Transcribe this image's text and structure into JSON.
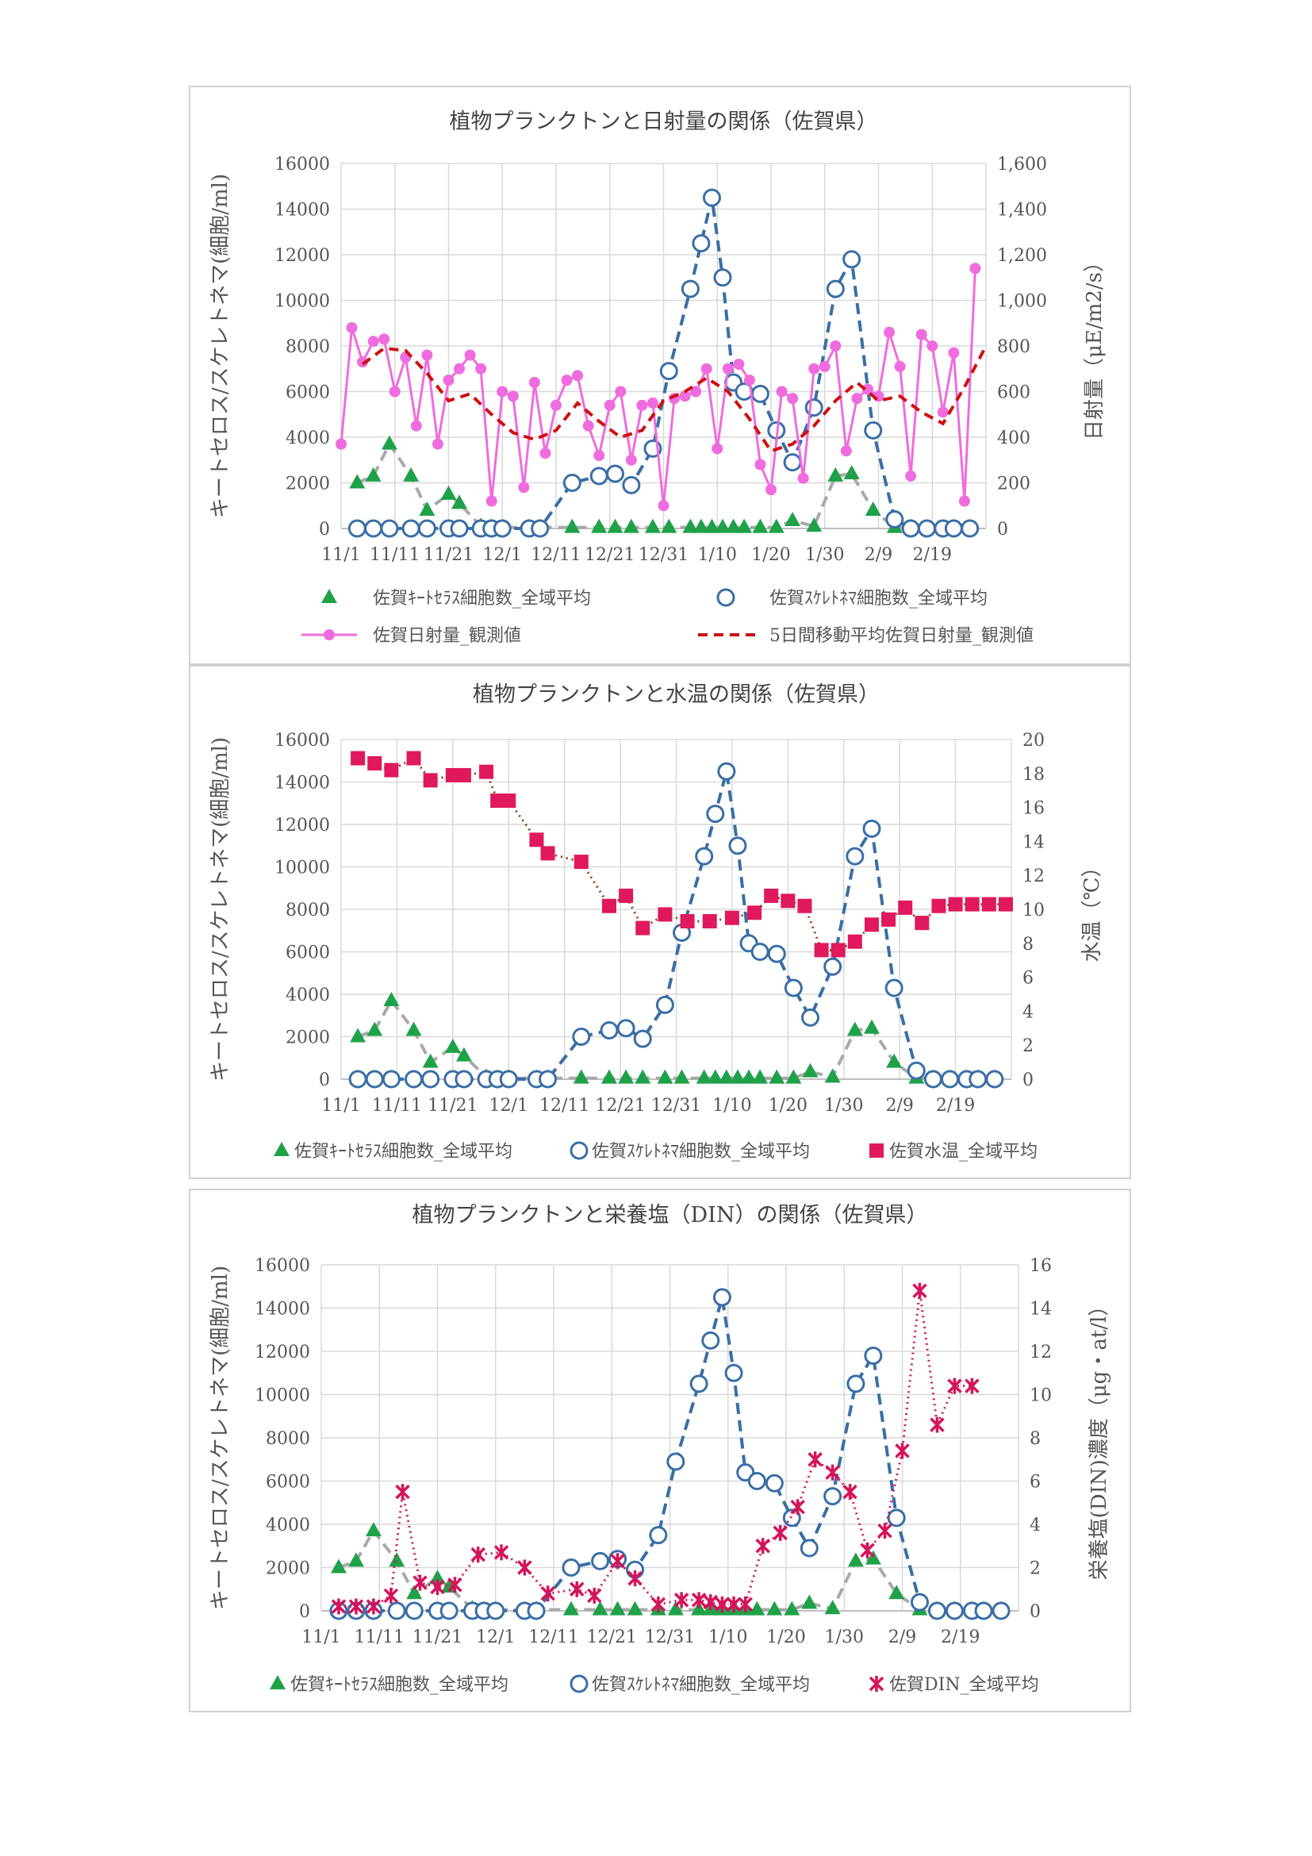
{
  "charts": [
    {
      "title": "植物プランクトンと日射量の関係（佐賀県）",
      "ylabel_left": "キートセロス/スケレトネマ(細胞/ml)",
      "ylabel_right": "日射量（μE/m2/s）",
      "left_ticks": [
        "16000",
        "14000",
        "12000",
        "10000",
        "8000",
        "6000",
        "4000",
        "2000",
        "0"
      ],
      "right_ticks": [
        "1,600",
        "1,400",
        "1,200",
        "1,000",
        "800",
        "600",
        "400",
        "200",
        "0"
      ],
      "x_ticks": [
        "11/1",
        "11/11",
        "11/21",
        "12/1",
        "12/11",
        "12/21",
        "12/31",
        "1/10",
        "1/20",
        "1/30",
        "2/9",
        "2/19"
      ],
      "legend": [
        {
          "label": "佐賀ｷｰﾄｾﾗｽ細胞数_全域平均",
          "key": "chaet"
        },
        {
          "label": "佐賀ｽｹﾚﾄﾈﾏ細胞数_全域平均",
          "key": "skel"
        },
        {
          "label": "佐賀日射量_観測値",
          "key": "solar"
        },
        {
          "label": "5日間移動平均佐賀日射量_観測値",
          "key": "solar_ma"
        }
      ]
    },
    {
      "title": "植物プランクトンと水温の関係（佐賀県）",
      "ylabel_left": "キートセロス/スケレトネマ(細胞/ml)",
      "ylabel_right": "水温（℃）",
      "left_ticks": [
        "16000",
        "14000",
        "12000",
        "10000",
        "8000",
        "6000",
        "4000",
        "2000",
        "0"
      ],
      "right_ticks": [
        "20",
        "18",
        "16",
        "14",
        "12",
        "10",
        "8",
        "6",
        "4",
        "2",
        "0"
      ],
      "x_ticks": [
        "11/1",
        "11/11",
        "11/21",
        "12/1",
        "12/11",
        "12/21",
        "12/31",
        "1/10",
        "1/20",
        "1/30",
        "2/9",
        "2/19"
      ],
      "legend": [
        {
          "label": "佐賀ｷｰﾄｾﾗｽ細胞数_全域平均",
          "key": "chaet"
        },
        {
          "label": "佐賀ｽｹﾚﾄﾈﾏ細胞数_全域平均",
          "key": "skel"
        },
        {
          "label": "佐賀水温_全域平均",
          "key": "temp"
        }
      ]
    },
    {
      "title": "植物プランクトンと栄養塩（DIN）の関係（佐賀県）",
      "ylabel_left": "キートセロス/スケレトネマ(細胞/ml)",
      "ylabel_right": "栄養塩(DIN)濃度（μg・at/l）",
      "left_ticks": [
        "16000",
        "14000",
        "12000",
        "10000",
        "8000",
        "6000",
        "4000",
        "2000",
        "0"
      ],
      "right_ticks": [
        "16",
        "14",
        "12",
        "10",
        "8",
        "6",
        "4",
        "2",
        "0"
      ],
      "x_ticks": [
        "11/1",
        "11/11",
        "11/21",
        "12/1",
        "12/11",
        "12/21",
        "12/31",
        "1/10",
        "1/20",
        "1/30",
        "2/9",
        "2/19"
      ],
      "legend": [
        {
          "label": "佐賀ｷｰﾄｾﾗｽ細胞数_全域平均",
          "key": "chaet"
        },
        {
          "label": "佐賀ｽｹﾚﾄﾈﾏ細胞数_全域平均",
          "key": "skel"
        },
        {
          "label": "佐賀DIN_全域平均",
          "key": "din"
        }
      ]
    }
  ],
  "colors": {
    "chaet": "#1fa14a",
    "chaet_line": "#a9a9a9",
    "skel": "#3a6ea5",
    "solar": "#ef6cde",
    "solar_ma": "#cc1111",
    "temp": "#e0185d",
    "temp_line": "#8b4513",
    "din": "#d4145a",
    "grid": "#d9d9d9",
    "axis_text": "#555555"
  },
  "chart_data": [
    {
      "type": "line",
      "title": "植物プランクトンと日射量の関係（佐賀県）",
      "x_unit": "day index from 11/1",
      "ylim_left": [
        0,
        16000
      ],
      "ylim_right": [
        0,
        1600
      ],
      "series": [
        {
          "name": "佐賀ｷｰﾄｾﾗｽ細胞数_全域平均",
          "axis": "left",
          "style": "triangle-dash",
          "x": [
            3,
            6,
            9,
            13,
            16,
            20,
            22,
            26,
            28,
            30,
            35,
            37,
            43,
            48,
            51,
            54,
            58,
            61,
            65,
            67,
            69,
            71,
            73,
            75,
            78,
            81,
            84,
            88,
            92,
            95,
            99,
            103,
            106
          ],
          "values": [
            2000,
            2300,
            3700,
            2300,
            800,
            1500,
            1100,
            100,
            50,
            50,
            50,
            50,
            50,
            50,
            50,
            50,
            50,
            50,
            50,
            50,
            50,
            50,
            50,
            50,
            50,
            50,
            350,
            100,
            2300,
            2400,
            800,
            50,
            50
          ]
        },
        {
          "name": "佐賀ｽｹﾚﾄﾈﾏ細胞数_全域平均",
          "axis": "left",
          "style": "circle-dash",
          "x": [
            3,
            6,
            9,
            13,
            16,
            20,
            22,
            26,
            28,
            30,
            35,
            37,
            43,
            48,
            51,
            54,
            58,
            61,
            65,
            67,
            69,
            71,
            73,
            75,
            78,
            81,
            84,
            88,
            92,
            95,
            99,
            103,
            106,
            109,
            112,
            114,
            117
          ],
          "values": [
            0,
            0,
            0,
            0,
            0,
            0,
            0,
            0,
            0,
            0,
            0,
            0,
            2000,
            2300,
            2400,
            1900,
            3500,
            6900,
            10500,
            12500,
            14500,
            11000,
            6400,
            6000,
            5900,
            4300,
            2900,
            5300,
            10500,
            11800,
            4300,
            400,
            0,
            0,
            0,
            0,
            0
          ]
        },
        {
          "name": "佐賀日射量_観測値",
          "axis": "right",
          "style": "magenta-dots",
          "x": [
            0,
            2,
            4,
            6,
            8,
            10,
            12,
            14,
            16,
            18,
            20,
            22,
            24,
            26,
            28,
            30,
            32,
            34,
            36,
            38,
            40,
            42,
            44,
            46,
            48,
            50,
            52,
            54,
            56,
            58,
            60,
            62,
            64,
            66,
            68,
            70,
            72,
            74,
            76,
            78,
            80,
            82,
            84,
            86,
            88,
            90,
            92,
            94,
            96,
            98,
            100,
            102,
            104,
            106,
            108,
            110,
            112,
            114,
            116,
            118
          ],
          "values": [
            370,
            880,
            730,
            820,
            830,
            600,
            750,
            450,
            760,
            370,
            650,
            700,
            760,
            700,
            120,
            600,
            580,
            180,
            640,
            330,
            540,
            650,
            670,
            450,
            320,
            540,
            600,
            300,
            540,
            550,
            100,
            570,
            580,
            600,
            700,
            350,
            700,
            720,
            650,
            280,
            170,
            600,
            570,
            220,
            700,
            710,
            800,
            340,
            570,
            610,
            580,
            860,
            710,
            230,
            850,
            800,
            510,
            770,
            120,
            1140
          ]
        },
        {
          "name": "5日間移動平均佐賀日射量_観測値",
          "axis": "right",
          "style": "red-dash",
          "x": [
            4,
            8,
            12,
            16,
            20,
            24,
            28,
            32,
            36,
            40,
            44,
            48,
            52,
            56,
            60,
            64,
            68,
            72,
            76,
            80,
            84,
            88,
            92,
            96,
            100,
            104,
            108,
            112,
            116,
            120
          ],
          "values": [
            720,
            790,
            780,
            680,
            560,
            590,
            500,
            420,
            390,
            430,
            550,
            470,
            400,
            430,
            560,
            600,
            660,
            600,
            480,
            340,
            370,
            450,
            560,
            640,
            560,
            580,
            510,
            460,
            620,
            800
          ]
        }
      ]
    },
    {
      "type": "line",
      "title": "植物プランクトンと水温の関係（佐賀県）",
      "ylim_left": [
        0,
        16000
      ],
      "ylim_right": [
        0,
        20
      ],
      "series": [
        {
          "name": "佐賀ｷｰﾄｾﾗｽ細胞数_全域平均",
          "axis": "left",
          "style": "triangle-dash",
          "x": [
            3,
            6,
            9,
            13,
            16,
            20,
            22,
            26,
            28,
            30,
            35,
            37,
            43,
            48,
            51,
            54,
            58,
            61,
            65,
            67,
            69,
            71,
            73,
            75,
            78,
            81,
            84,
            88,
            92,
            95,
            99,
            103,
            106,
            109,
            112,
            114,
            117
          ],
          "values": [
            2000,
            2300,
            3700,
            2300,
            800,
            1500,
            1100,
            100,
            50,
            50,
            50,
            50,
            50,
            50,
            50,
            50,
            50,
            50,
            50,
            50,
            50,
            50,
            50,
            50,
            50,
            50,
            350,
            100,
            2300,
            2400,
            800,
            50,
            50,
            50,
            50,
            50,
            50
          ]
        },
        {
          "name": "佐賀ｽｹﾚﾄﾈﾏ細胞数_全域平均",
          "axis": "left",
          "style": "circle-dash",
          "x": [
            3,
            6,
            9,
            13,
            16,
            20,
            22,
            26,
            28,
            30,
            35,
            37,
            43,
            48,
            51,
            54,
            58,
            61,
            65,
            67,
            69,
            71,
            73,
            75,
            78,
            81,
            84,
            88,
            92,
            95,
            99,
            103,
            106,
            109,
            112,
            114,
            117
          ],
          "values": [
            0,
            0,
            0,
            0,
            0,
            0,
            0,
            0,
            0,
            0,
            0,
            0,
            2000,
            2300,
            2400,
            1900,
            3500,
            6900,
            10500,
            12500,
            14500,
            11000,
            6400,
            6000,
            5900,
            4300,
            2900,
            5300,
            10500,
            11800,
            4300,
            400,
            0,
            0,
            0,
            0,
            0
          ]
        },
        {
          "name": "佐賀水温_全域平均",
          "axis": "right",
          "style": "square-dot",
          "x": [
            3,
            6,
            9,
            13,
            16,
            20,
            22,
            26,
            28,
            30,
            35,
            37,
            43,
            48,
            51,
            54,
            58,
            62,
            66,
            70,
            74,
            77,
            80,
            83,
            86,
            89,
            92,
            95,
            98,
            101,
            104,
            107,
            110,
            113,
            116,
            119
          ],
          "values": [
            18.9,
            18.6,
            18.2,
            18.9,
            17.6,
            17.9,
            17.9,
            18.1,
            16.4,
            16.4,
            14.1,
            13.3,
            12.8,
            10.2,
            10.8,
            8.9,
            9.7,
            9.3,
            9.3,
            9.5,
            9.8,
            10.8,
            10.5,
            10.2,
            7.6,
            7.6,
            8.1,
            9.1,
            9.4,
            10.1,
            9.2,
            10.2,
            10.3,
            10.3,
            10.3,
            10.3
          ]
        }
      ]
    },
    {
      "type": "line",
      "title": "植物プランクトンと栄養塩（DIN）の関係（佐賀県）",
      "ylim_left": [
        0,
        16000
      ],
      "ylim_right": [
        0,
        16
      ],
      "series": [
        {
          "name": "佐賀ｷｰﾄｾﾗｽ細胞数_全域平均",
          "axis": "left",
          "style": "triangle-dash",
          "x": [
            3,
            6,
            9,
            13,
            16,
            20,
            22,
            26,
            28,
            30,
            35,
            37,
            43,
            48,
            51,
            54,
            58,
            61,
            65,
            67,
            69,
            71,
            73,
            75,
            78,
            81,
            84,
            88,
            92,
            95,
            99,
            103,
            106,
            109,
            112,
            114,
            117
          ],
          "values": [
            2000,
            2300,
            3700,
            2300,
            800,
            1500,
            1100,
            100,
            50,
            50,
            50,
            50,
            50,
            50,
            50,
            50,
            50,
            50,
            50,
            50,
            50,
            50,
            50,
            50,
            50,
            50,
            350,
            100,
            2300,
            2400,
            800,
            50,
            50,
            50,
            50,
            50,
            50
          ]
        },
        {
          "name": "佐賀ｽｹﾚﾄﾈﾏ細胞数_全域平均",
          "axis": "left",
          "style": "circle-dash",
          "x": [
            3,
            6,
            9,
            13,
            16,
            20,
            22,
            26,
            28,
            30,
            35,
            37,
            43,
            48,
            51,
            54,
            58,
            61,
            65,
            67,
            69,
            71,
            73,
            75,
            78,
            81,
            84,
            88,
            92,
            95,
            99,
            103,
            106,
            109,
            112,
            114,
            117
          ],
          "values": [
            0,
            0,
            0,
            0,
            0,
            0,
            0,
            0,
            0,
            0,
            0,
            0,
            2000,
            2300,
            2400,
            1900,
            3500,
            6900,
            10500,
            12500,
            14500,
            11000,
            6400,
            6000,
            5900,
            4300,
            2900,
            5300,
            10500,
            11800,
            4300,
            400,
            0,
            0,
            0,
            0,
            0
          ]
        },
        {
          "name": "佐賀DIN_全域平均",
          "axis": "right",
          "style": "x-dot",
          "x": [
            3,
            6,
            9,
            12,
            14,
            17,
            20,
            23,
            27,
            31,
            35,
            39,
            44,
            47,
            51,
            54,
            58,
            62,
            65,
            67,
            69,
            71,
            73,
            76,
            79,
            82,
            85,
            88,
            91,
            94,
            97,
            100,
            103,
            106,
            109,
            112
          ],
          "values": [
            0.2,
            0.2,
            0.2,
            0.7,
            5.5,
            1.3,
            1.1,
            1.2,
            2.6,
            2.7,
            2.0,
            0.8,
            1.0,
            0.7,
            2.3,
            1.5,
            0.3,
            0.5,
            0.5,
            0.4,
            0.3,
            0.3,
            0.3,
            3.0,
            3.6,
            4.8,
            7.0,
            6.4,
            5.5,
            2.8,
            3.7,
            7.4,
            14.8,
            8.6,
            10.4,
            10.4
          ]
        }
      ]
    }
  ]
}
